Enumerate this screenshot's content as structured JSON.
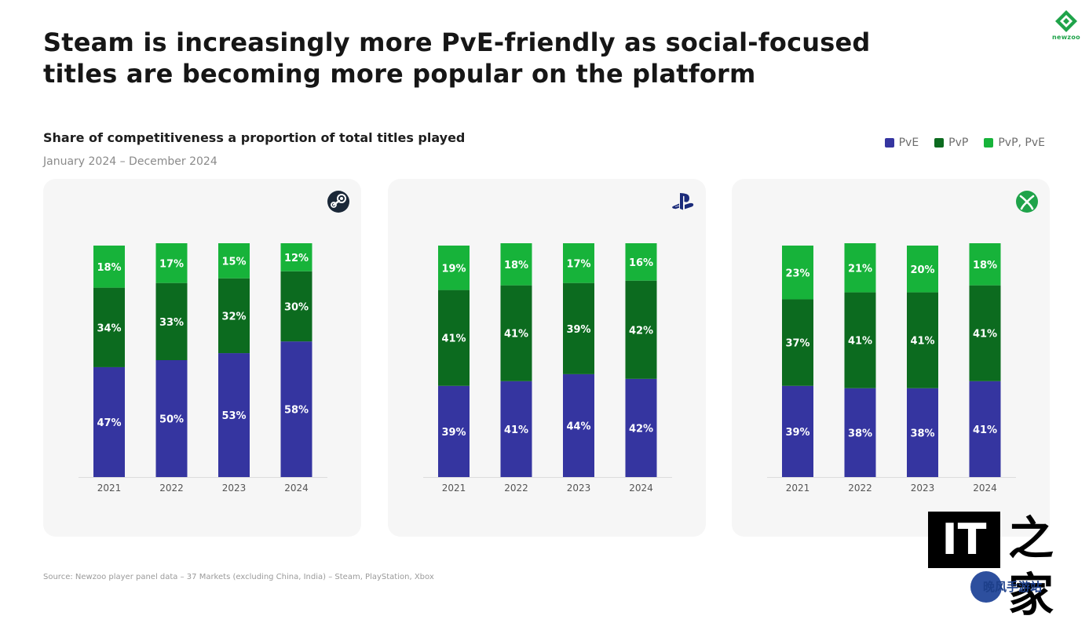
{
  "headline": {
    "line1": "Steam is increasingly more PvE-friendly as social-focused",
    "line2": "titles are becoming more popular on the platform"
  },
  "brand": {
    "logo_text": "newzoo",
    "color": "#1fa34a"
  },
  "subtitle": "Share of competitiveness a proportion of total titles played",
  "date_range": "January 2024 – December 2024",
  "legend": [
    {
      "label": "PvE",
      "color": "#3535a0"
    },
    {
      "label": "PvP",
      "color": "#0c6b1f"
    },
    {
      "label": "PvP, PvE",
      "color": "#17b33a"
    }
  ],
  "source": "Source: Newzoo player panel data – 37 Markets (excluding China, India) – Steam, PlayStation, Xbox",
  "watermark": {
    "it": "IT",
    "zhi": "之家",
    "badge": "晚风手游站"
  },
  "chart_data": [
    {
      "type": "bar",
      "stacked": true,
      "platform_icon": "steam-icon",
      "categories": [
        "2021",
        "2022",
        "2023",
        "2024"
      ],
      "series": [
        {
          "name": "PvE",
          "values": [
            47,
            50,
            53,
            58
          ]
        },
        {
          "name": "PvP",
          "values": [
            34,
            33,
            32,
            30
          ]
        },
        {
          "name": "PvP, PvE",
          "values": [
            18,
            17,
            15,
            12
          ]
        }
      ],
      "ylim": [
        0,
        100
      ]
    },
    {
      "type": "bar",
      "stacked": true,
      "platform_icon": "playstation-icon",
      "categories": [
        "2021",
        "2022",
        "2023",
        "2024"
      ],
      "series": [
        {
          "name": "PvE",
          "values": [
            39,
            41,
            44,
            42
          ]
        },
        {
          "name": "PvP",
          "values": [
            41,
            41,
            39,
            42
          ]
        },
        {
          "name": "PvP, PvE",
          "values": [
            19,
            18,
            17,
            16
          ]
        }
      ],
      "ylim": [
        0,
        100
      ]
    },
    {
      "type": "bar",
      "stacked": true,
      "platform_icon": "xbox-icon",
      "categories": [
        "2021",
        "2022",
        "2023",
        "2024"
      ],
      "series": [
        {
          "name": "PvE",
          "values": [
            39,
            38,
            38,
            41
          ]
        },
        {
          "name": "PvP",
          "values": [
            37,
            41,
            41,
            41
          ]
        },
        {
          "name": "PvP, PvE",
          "values": [
            23,
            21,
            20,
            18
          ]
        }
      ],
      "ylim": [
        0,
        100
      ]
    }
  ]
}
